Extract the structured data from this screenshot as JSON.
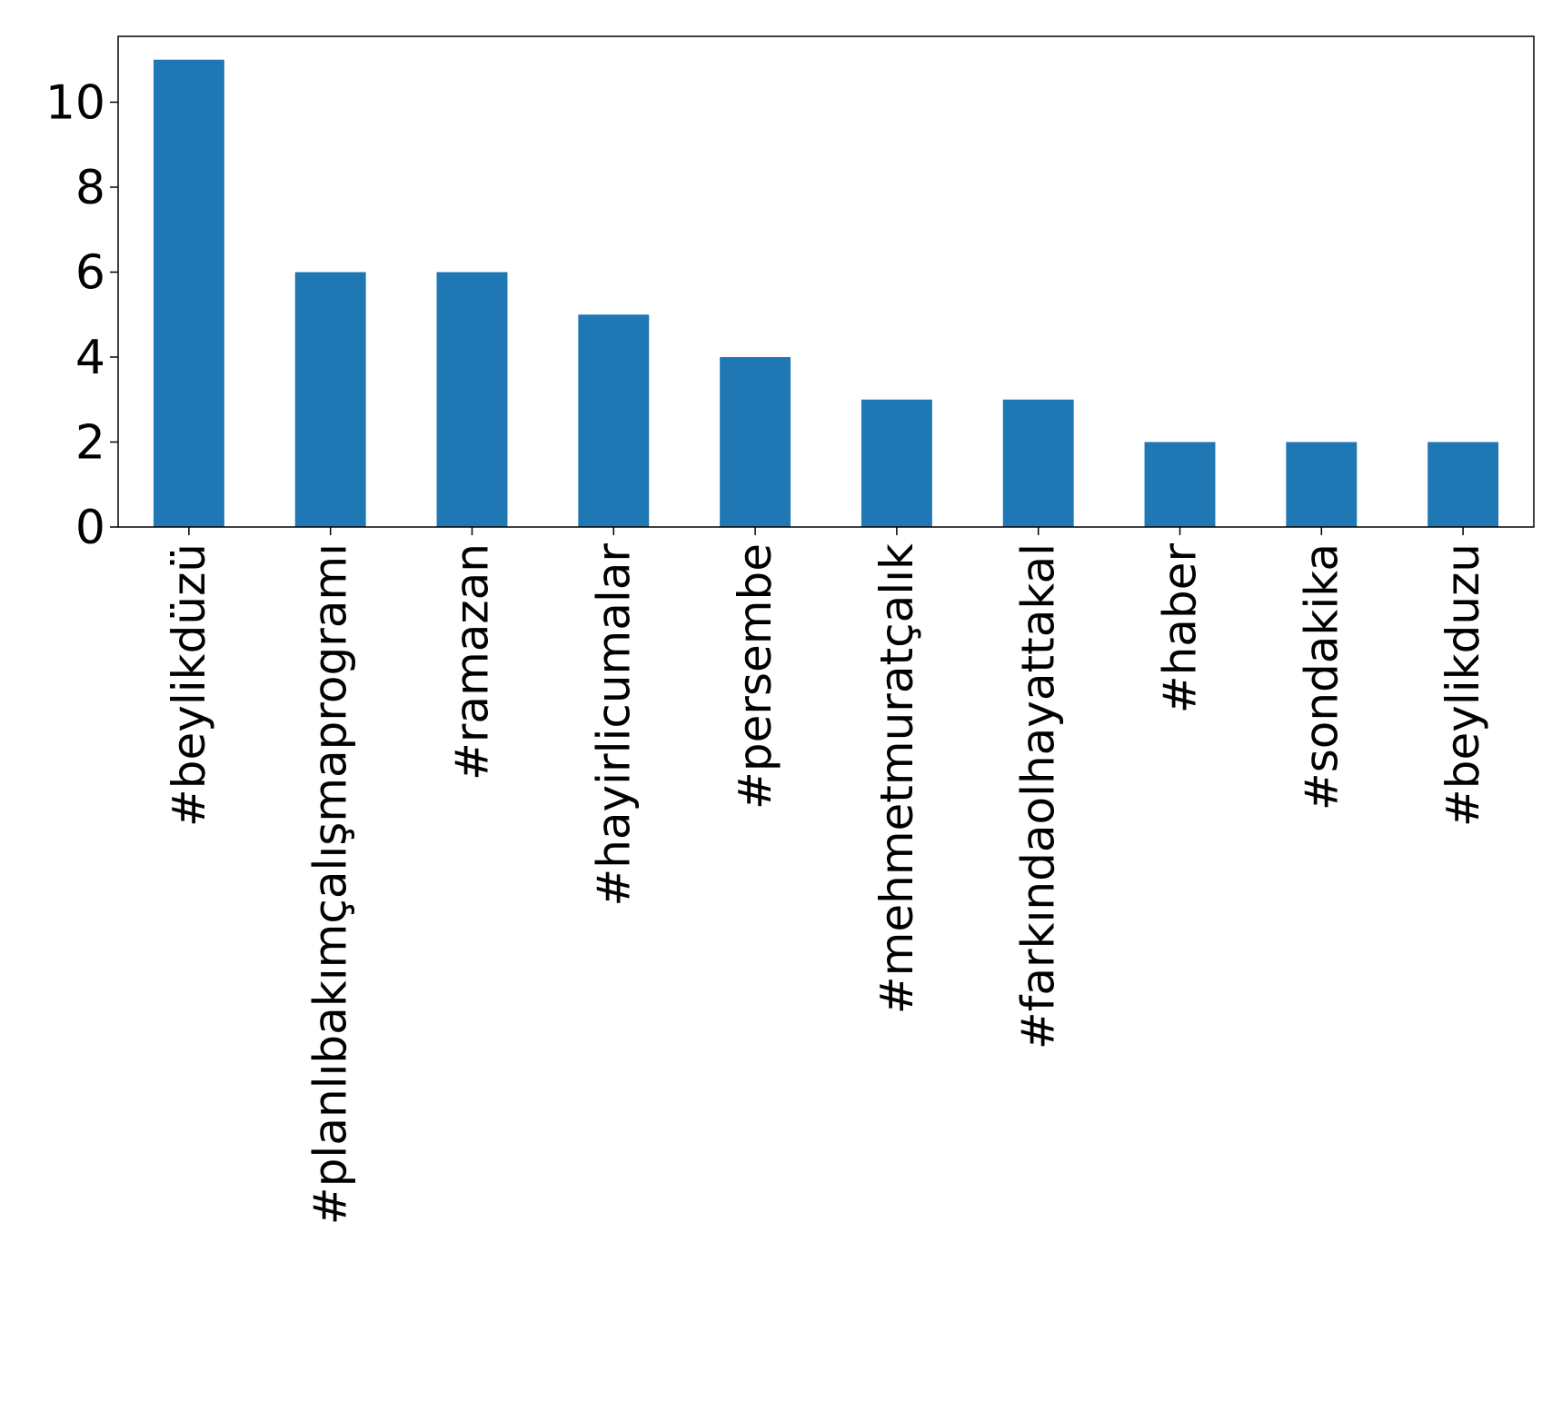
{
  "chart_data": {
    "type": "bar",
    "title": "",
    "xlabel": "",
    "ylabel": "",
    "categories": [
      "#beylikdüzü",
      "#planlıbakımçalışmaprogramı",
      "#ramazan",
      "#hayirlicumalar",
      "#persembe",
      "#mehmetmuratçalık",
      "#farkındaolhayattakal",
      "#haber",
      "#sondakika",
      "#beylikduzu"
    ],
    "values": [
      11,
      6,
      6,
      5,
      4,
      3,
      3,
      2,
      2,
      2
    ],
    "ylim": [
      0,
      11.55
    ],
    "yticks": [
      0,
      2,
      4,
      6,
      8,
      10
    ],
    "grid": false,
    "legend": "none",
    "colors": {
      "bar": "#1f77b4",
      "axis": "#000000",
      "background": "#ffffff"
    }
  }
}
